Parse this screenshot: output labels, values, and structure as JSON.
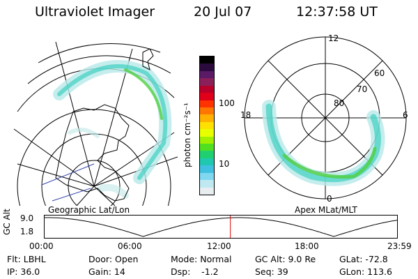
{
  "header": {
    "instrument": "Ultraviolet Imager",
    "date": "20 Jul 07",
    "time": "12:37:58 UT"
  },
  "left_map": {
    "label": "Geographic Lat/Lon"
  },
  "right_map": {
    "label": "Apex MLat/MLT",
    "mlt_labels": {
      "top": "12",
      "left": "18",
      "right": "6",
      "bottom": "0"
    },
    "lat_labels": [
      "80",
      "70",
      "60"
    ]
  },
  "colorbar": {
    "unit_label": "photon cm⁻²s⁻¹",
    "ticks": [
      "100",
      "10"
    ],
    "colors": [
      "#000000",
      "#2b0b3d",
      "#5a1a66",
      "#8a1f5a",
      "#b8002a",
      "#e0001a",
      "#ff3300",
      "#ff7700",
      "#ffb000",
      "#ffe000",
      "#e8ff00",
      "#a0f000",
      "#50e020",
      "#20d070",
      "#20c8b0",
      "#40c0e0",
      "#80d8f0",
      "#c0e8f0",
      "#e8eef0"
    ]
  },
  "timeline": {
    "ylabel": "GC Alt",
    "y_ticks": [
      "9.0",
      "1.8"
    ],
    "x_ticks": [
      "00:00",
      "06:00",
      "12:00",
      "18:00",
      "23:59"
    ],
    "current_fraction": 0.527
  },
  "footer": {
    "col1": [
      "Flt: LBHL",
      "IP: 36.0"
    ],
    "col2": [
      "Door: Open",
      "Gain: 14"
    ],
    "col3": [
      "Mode: Normal",
      "Dsp:    -1.2"
    ],
    "col4": [
      "GC Alt: 9.0 Re",
      "Seq: 39"
    ],
    "col5": [
      "GLat: -72.8",
      "GLon: 113.6"
    ]
  }
}
